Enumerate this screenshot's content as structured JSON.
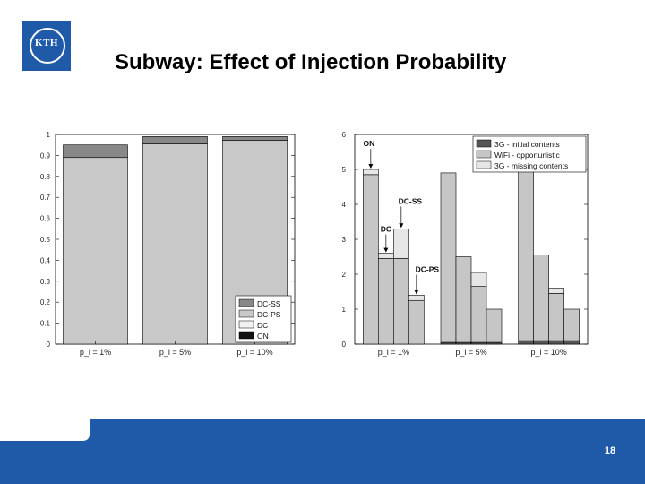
{
  "slide": {
    "title": "Subway: Effect of Injection Probability",
    "page_number": "18",
    "logo_text": "KTH",
    "colors": {
      "accent": "#1f5aa8"
    }
  },
  "chart_data": [
    {
      "type": "bar",
      "stacked": true,
      "categories": [
        "p_i = 1%",
        "p_i = 5%",
        "p_i = 10%"
      ],
      "ylim": [
        0,
        1
      ],
      "yticks": [
        0,
        0.1,
        0.2,
        0.3,
        0.4,
        0.5,
        0.6,
        0.7,
        0.8,
        0.9,
        1
      ],
      "legend_position": "bottom-right",
      "series": [
        {
          "name": "ON",
          "color": "#111111",
          "values": [
            0.0,
            0.0,
            0.0
          ]
        },
        {
          "name": "DC",
          "color": "#f2f2f2",
          "values": [
            0.0,
            0.0,
            0.0
          ]
        },
        {
          "name": "DC-PS",
          "color": "#c8c8c8",
          "values": [
            0.89,
            0.955,
            0.972
          ]
        },
        {
          "name": "DC-SS",
          "color": "#888888",
          "values": [
            0.06,
            0.035,
            0.018
          ]
        }
      ]
    },
    {
      "type": "bar",
      "stacked": true,
      "groups": [
        "p_i = 1%",
        "p_i = 5%",
        "p_i = 10%"
      ],
      "bar_labels": [
        "ON",
        "DC",
        "DC-SS",
        "DC-PS"
      ],
      "ylim": [
        0,
        6
      ],
      "yticks": [
        0,
        1,
        2,
        3,
        4,
        5,
        6
      ],
      "legend_position": "top-right",
      "series": [
        {
          "name": "3G - initial contents",
          "color": "#555555",
          "values": [
            [
              0,
              0,
              0,
              0
            ],
            [
              0.05,
              0.05,
              0.05,
              0.05
            ],
            [
              0.1,
              0.1,
              0.1,
              0.1
            ]
          ]
        },
        {
          "name": "WiFi - opportunistic",
          "color": "#c6c6c6",
          "values": [
            [
              4.85,
              2.45,
              2.45,
              1.25
            ],
            [
              4.85,
              2.45,
              1.6,
              0.95
            ],
            [
              4.85,
              2.45,
              1.35,
              0.9
            ]
          ]
        },
        {
          "name": "3G - missing contents",
          "color": "#e6e6e6",
          "values": [
            [
              0.15,
              0.15,
              0.85,
              0.15
            ],
            [
              0,
              0,
              0.4,
              0
            ],
            [
              0,
              0,
              0.15,
              0
            ]
          ]
        }
      ],
      "annotations": [
        {
          "text": "ON",
          "group": 0,
          "bar": 0
        },
        {
          "text": "DC",
          "group": 0,
          "bar": 1
        },
        {
          "text": "DC-SS",
          "group": 0,
          "bar": 2
        },
        {
          "text": "DC-PS",
          "group": 0,
          "bar": 3
        }
      ]
    }
  ]
}
